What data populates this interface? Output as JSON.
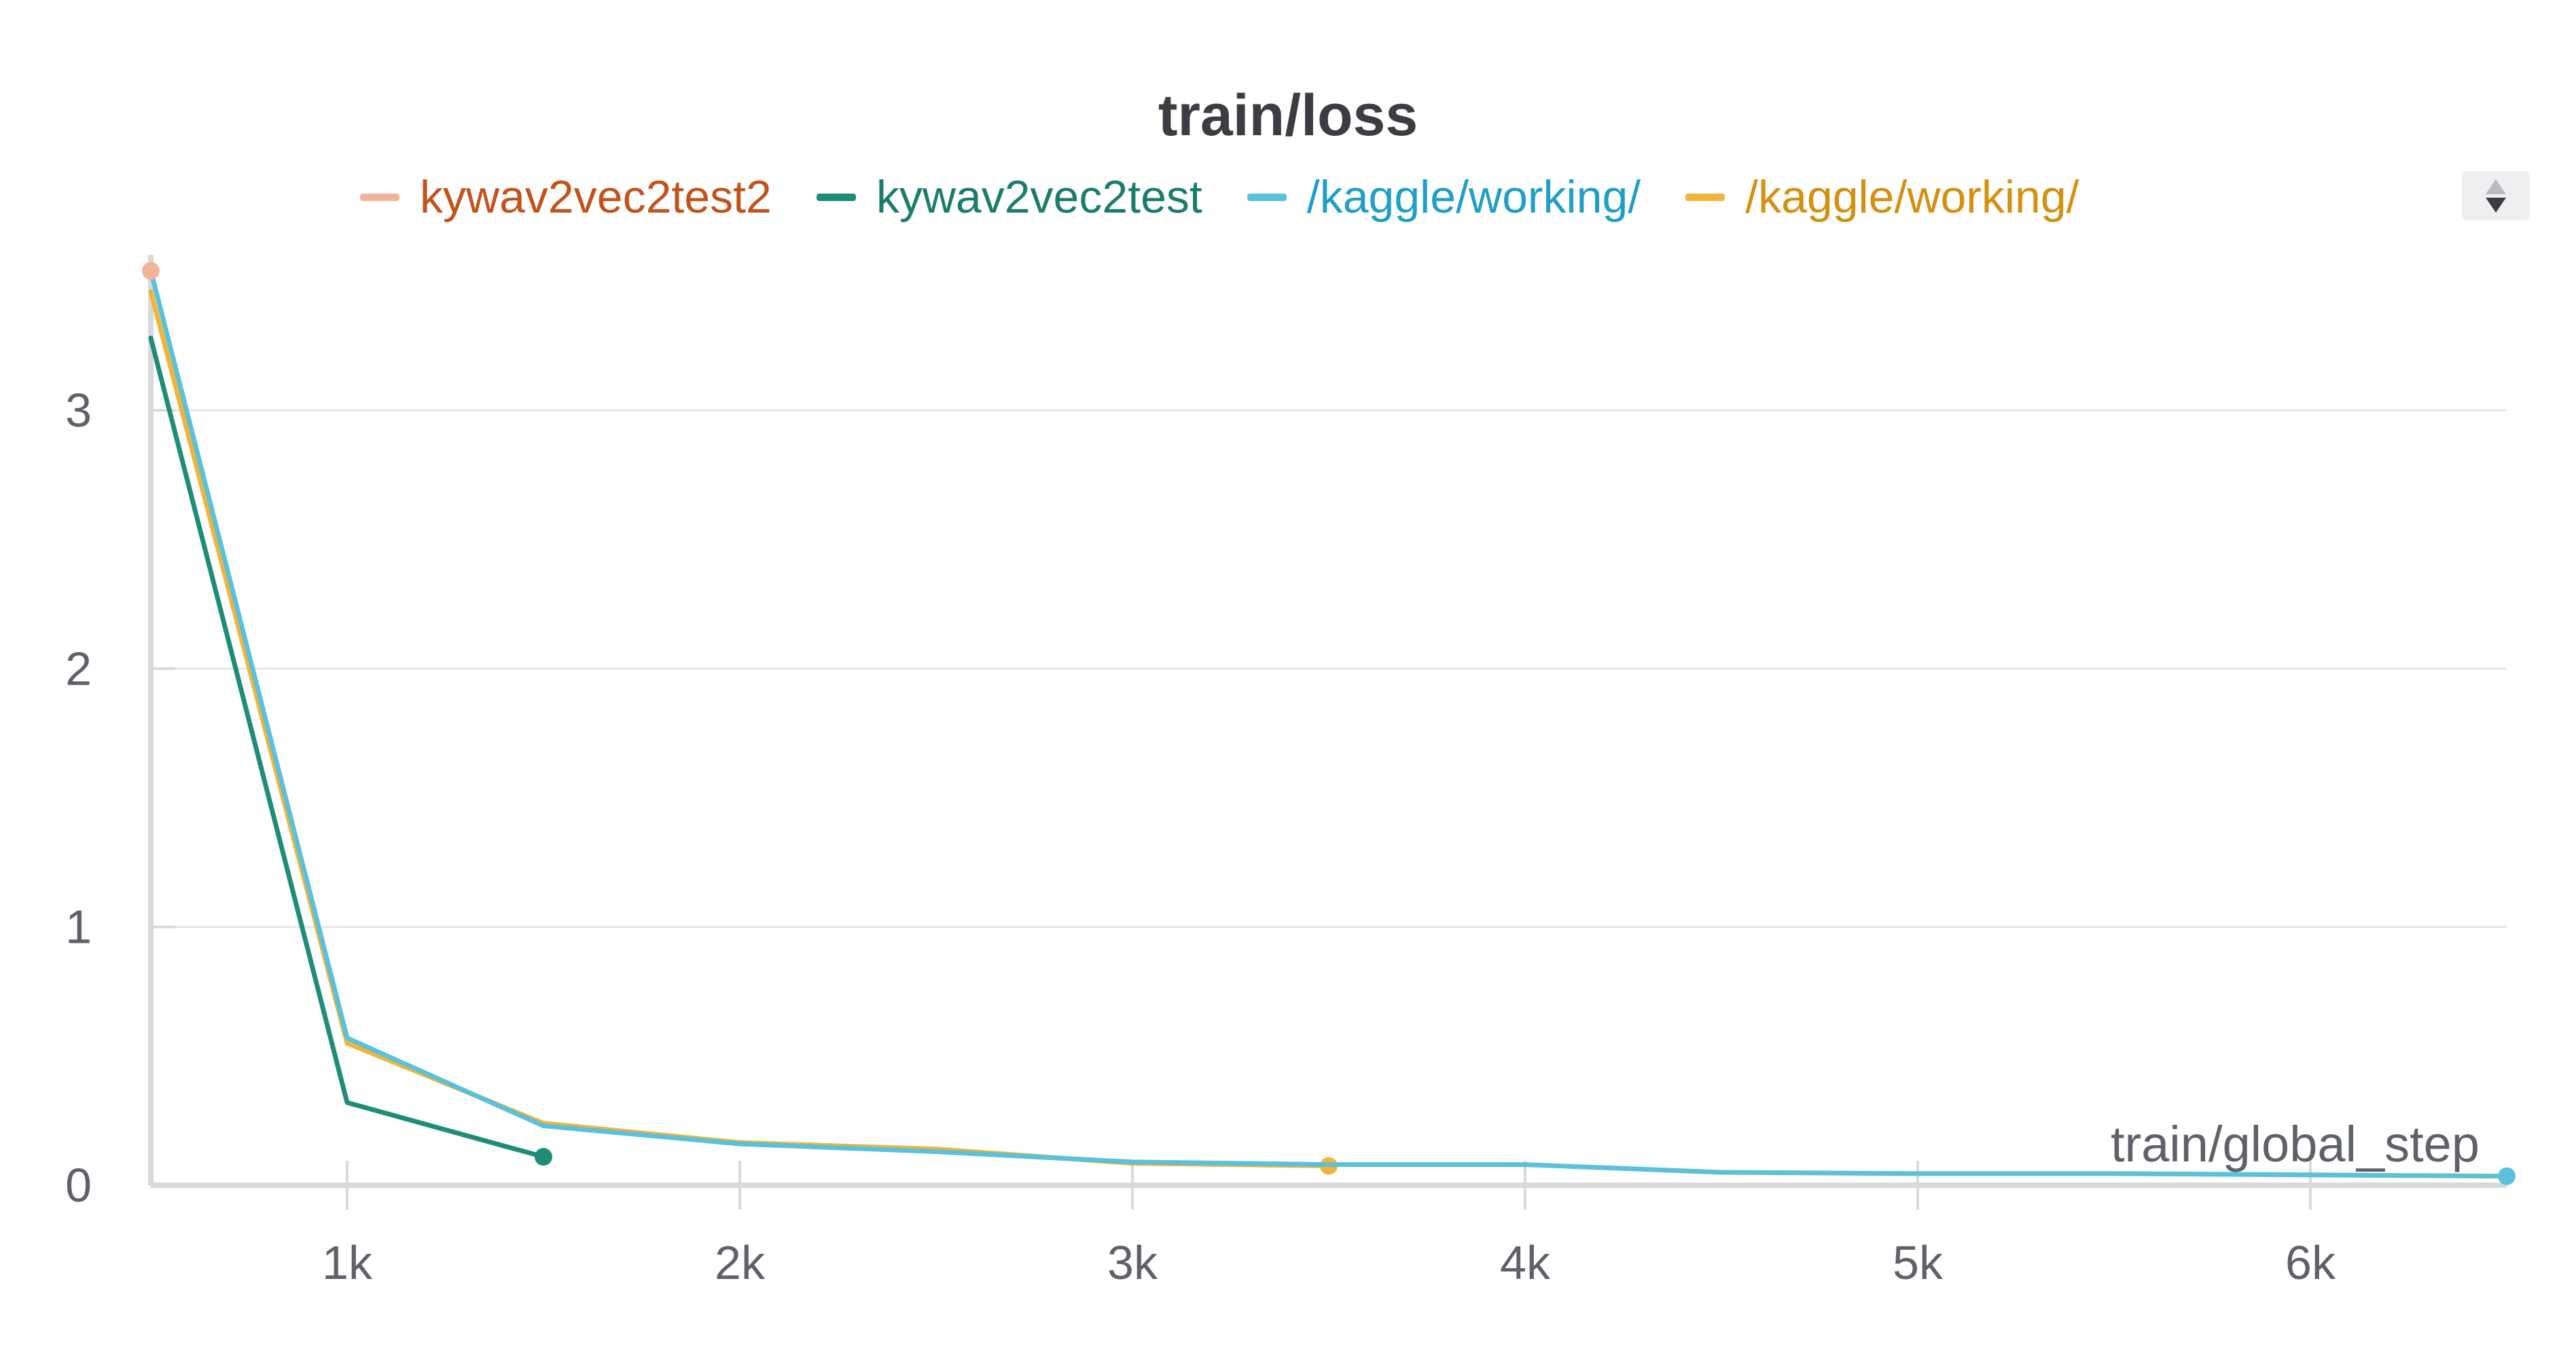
{
  "colors": {
    "kywav2vec2test2": "#f2b39b",
    "kywav2vec2test": "#1f8c78",
    "kaggle_working_cyan": "#5bc0d9",
    "kaggle_working_yellow": "#f0b43a",
    "legend_text_test2": "#c2531b",
    "legend_text_test": "#1a7d6b",
    "legend_text_cyan": "#1f9fc8",
    "legend_text_yellow": "#d4900f",
    "grid": "#e6e6e9",
    "axis": "#d9d9dc"
  },
  "legend": {
    "scroll_icon": "scroll-updown-icon"
  },
  "chart_data": {
    "type": "line",
    "title": "train/loss",
    "xlabel": "train/global_step",
    "ylabel": "",
    "xlim": [
      500,
      6500
    ],
    "ylim": [
      0,
      3.55
    ],
    "x_ticks": [
      1000,
      2000,
      3000,
      4000,
      5000,
      6000
    ],
    "x_tick_labels": [
      "1k",
      "2k",
      "3k",
      "4k",
      "5k",
      "6k"
    ],
    "y_ticks": [
      0,
      1,
      2,
      3
    ],
    "y_tick_labels": [
      "0",
      "1",
      "2",
      "3"
    ],
    "grid": true,
    "legend_position": "top",
    "series": [
      {
        "name": "kywav2vec2test2",
        "color": "#f2b39b",
        "x": [
          500
        ],
        "y": [
          3.54
        ]
      },
      {
        "name": "kywav2vec2test",
        "color": "#1f8c78",
        "x": [
          500,
          1000,
          1500
        ],
        "y": [
          3.28,
          0.32,
          0.11
        ]
      },
      {
        "name": "/kaggle/working/",
        "color": "#5bc0d9",
        "x": [
          500,
          1000,
          1500,
          2000,
          2500,
          3000,
          3500,
          4000,
          4500,
          5000,
          5500,
          6000,
          6500
        ],
        "y": [
          3.54,
          0.57,
          0.23,
          0.16,
          0.13,
          0.09,
          0.08,
          0.08,
          0.05,
          0.045,
          0.045,
          0.04,
          0.035
        ]
      },
      {
        "name": "/kaggle/working/",
        "color": "#f0b43a",
        "x": [
          500,
          1000,
          1500,
          2000,
          2500,
          3000,
          3500
        ],
        "y": [
          3.46,
          0.55,
          0.24,
          0.165,
          0.14,
          0.085,
          0.075
        ]
      }
    ]
  }
}
